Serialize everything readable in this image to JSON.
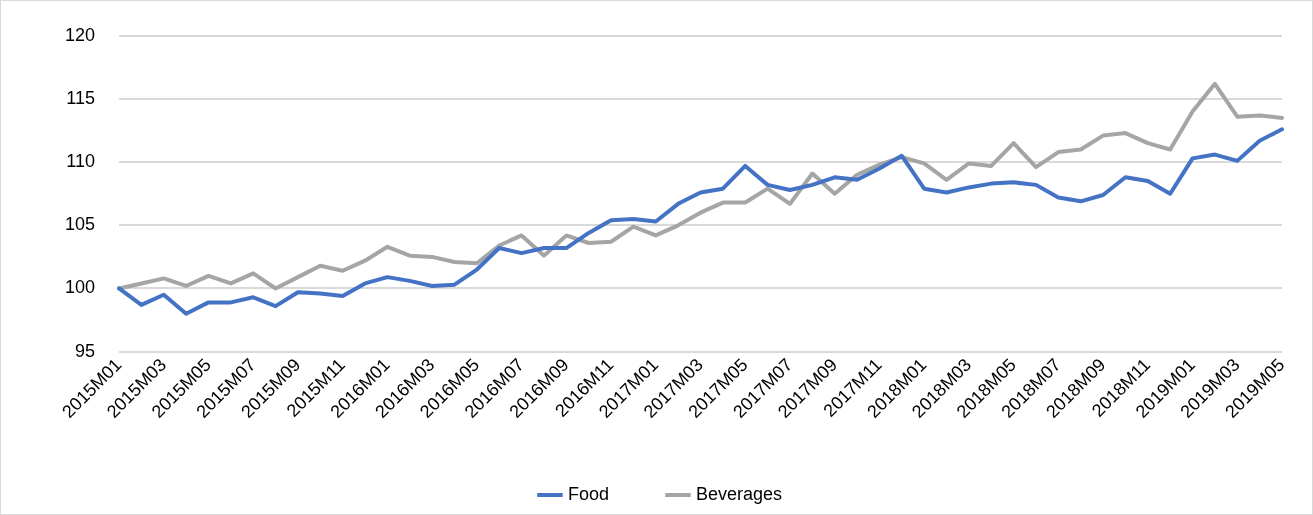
{
  "chart_data": {
    "type": "line",
    "categories": [
      "2015M01",
      null,
      "2015M03",
      null,
      "2015M05",
      null,
      "2015M07",
      null,
      "2015M09",
      null,
      "2015M11",
      null,
      "2016M01",
      null,
      "2016M03",
      null,
      "2016M05",
      null,
      "2016M07",
      null,
      "2016M09",
      null,
      "2016M11",
      null,
      "2017M01",
      null,
      "2017M03",
      null,
      "2017M05",
      null,
      "2017M07",
      null,
      "2017M09",
      null,
      "2017M11",
      null,
      "2018M01",
      null,
      "2018M03",
      null,
      "2018M05",
      null,
      "2018M07",
      null,
      "2018M09",
      null,
      "2018M11",
      null,
      "2019M01",
      null,
      "2019M03",
      null,
      "2019M05"
    ],
    "series": [
      {
        "name": "Food",
        "color": "#4472c4",
        "values": [
          100,
          98.7,
          99.5,
          98.0,
          98.9,
          98.9,
          99.3,
          98.6,
          99.7,
          99.6,
          99.4,
          100.4,
          100.9,
          100.6,
          100.2,
          100.3,
          101.5,
          103.2,
          102.8,
          103.2,
          103.2,
          104.4,
          105.4,
          105.5,
          105.3,
          106.7,
          107.6,
          107.9,
          109.7,
          108.2,
          107.8,
          108.2,
          108.8,
          108.6,
          109.5,
          110.5,
          107.9,
          107.6,
          108.0,
          108.3,
          108.4,
          108.2,
          107.2,
          106.9,
          107.4,
          108.8,
          108.5,
          107.5,
          110.3,
          110.6,
          110.1,
          111.7,
          112.6
        ]
      },
      {
        "name": "Beverages",
        "color": "#a5a5a5",
        "values": [
          100,
          100.4,
          100.8,
          100.2,
          101.0,
          100.4,
          101.2,
          100.0,
          100.9,
          101.8,
          101.4,
          102.2,
          103.3,
          102.6,
          102.5,
          102.1,
          102.0,
          103.4,
          104.2,
          102.6,
          104.2,
          103.6,
          103.7,
          104.9,
          104.2,
          105.0,
          106.0,
          106.8,
          106.8,
          107.9,
          106.7,
          109.1,
          107.5,
          109.0,
          109.8,
          110.4,
          109.9,
          108.6,
          109.9,
          109.7,
          111.5,
          109.6,
          110.8,
          111.0,
          112.1,
          112.3,
          111.5,
          111.0,
          114.0,
          116.2,
          113.6,
          113.7,
          113.5
        ]
      }
    ],
    "ylim": [
      95,
      120
    ],
    "yticks": [
      95,
      100,
      105,
      110,
      115,
      120
    ],
    "grid": "y",
    "legend": "bottom",
    "marker": "none",
    "line_style": "solid"
  }
}
